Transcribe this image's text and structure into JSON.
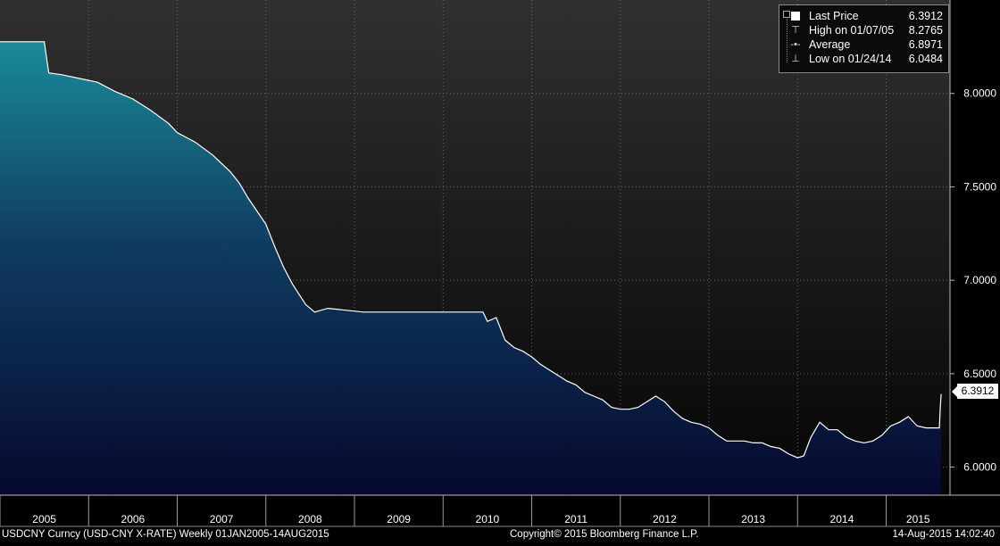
{
  "legend": {
    "last_label": "Last Price",
    "last_value": "6.3912",
    "high_label": "High on 01/07/05",
    "high_value": "8.2765",
    "avg_label": "Average",
    "avg_value": "6.8971",
    "low_label": "Low on 01/24/14",
    "low_value": "6.0484"
  },
  "last_tag": "6.3912",
  "footer": {
    "left": "USDCNY Curncy (USD-CNY X-RATE)  Weekly 01JAN2005-14AUG2015",
    "center": "Copyright© 2015 Bloomberg Finance L.P.",
    "right": "14-Aug-2015 14:02:40"
  },
  "colors": {
    "background_top": "#303030",
    "background_bottom": "#050505",
    "area_top": "#1a8a9a",
    "area_bottom": "#06082e",
    "line": "#ffffff"
  },
  "chart_data": {
    "type": "area",
    "x_tick_labels": [
      "2005",
      "2006",
      "2007",
      "2008",
      "2009",
      "2010",
      "2011",
      "2012",
      "2013",
      "2014",
      "2015"
    ],
    "y_tick_labels": [
      "6.0000",
      "6.5000",
      "7.0000",
      "7.5000",
      "8.0000"
    ],
    "y_ticks": [
      6.0,
      6.5,
      7.0,
      7.5,
      8.0
    ],
    "ylim": [
      5.85,
      8.5
    ],
    "xlim": [
      2005.0,
      2015.72
    ],
    "grid": true,
    "legend_position": "top-right",
    "series": [
      {
        "x": [
          2005.0,
          2005.5,
          2005.55,
          2005.7,
          2005.9,
          2006.1,
          2006.3,
          2006.5,
          2006.7,
          2006.9,
          2007.0,
          2007.2,
          2007.4,
          2007.6,
          2007.7,
          2007.8,
          2008.0,
          2008.1,
          2008.2,
          2008.3,
          2008.45,
          2008.55,
          2008.7,
          2008.9,
          2009.1,
          2009.3,
          2009.5,
          2009.7,
          2009.9,
          2010.1,
          2010.3,
          2010.45,
          2010.5,
          2010.6,
          2010.7,
          2010.8,
          2010.9,
          2011.0,
          2011.1,
          2011.2,
          2011.3,
          2011.4,
          2011.5,
          2011.6,
          2011.7,
          2011.8,
          2011.9,
          2012.0,
          2012.1,
          2012.2,
          2012.3,
          2012.4,
          2012.5,
          2012.6,
          2012.7,
          2012.8,
          2012.9,
          2013.0,
          2013.1,
          2013.2,
          2013.3,
          2013.4,
          2013.5,
          2013.6,
          2013.7,
          2013.8,
          2013.9,
          2014.0,
          2014.07,
          2014.15,
          2014.25,
          2014.35,
          2014.45,
          2014.55,
          2014.65,
          2014.75,
          2014.85,
          2014.95,
          2015.05,
          2015.15,
          2015.25,
          2015.35,
          2015.45,
          2015.55,
          2015.6,
          2015.61,
          2015.62
        ],
        "y": [
          8.2765,
          8.2765,
          8.11,
          8.1,
          8.08,
          8.06,
          8.01,
          7.97,
          7.91,
          7.84,
          7.79,
          7.74,
          7.67,
          7.58,
          7.52,
          7.44,
          7.3,
          7.18,
          7.07,
          6.98,
          6.87,
          6.83,
          6.85,
          6.84,
          6.83,
          6.83,
          6.83,
          6.83,
          6.83,
          6.83,
          6.83,
          6.83,
          6.78,
          6.8,
          6.68,
          6.64,
          6.62,
          6.59,
          6.55,
          6.52,
          6.49,
          6.46,
          6.44,
          6.4,
          6.38,
          6.36,
          6.32,
          6.31,
          6.31,
          6.32,
          6.35,
          6.38,
          6.35,
          6.3,
          6.26,
          6.24,
          6.23,
          6.21,
          6.17,
          6.14,
          6.14,
          6.14,
          6.13,
          6.13,
          6.11,
          6.1,
          6.07,
          6.05,
          6.06,
          6.16,
          6.24,
          6.2,
          6.2,
          6.16,
          6.14,
          6.13,
          6.14,
          6.17,
          6.22,
          6.24,
          6.27,
          6.22,
          6.21,
          6.21,
          6.21,
          6.32,
          6.3912
        ]
      }
    ]
  }
}
